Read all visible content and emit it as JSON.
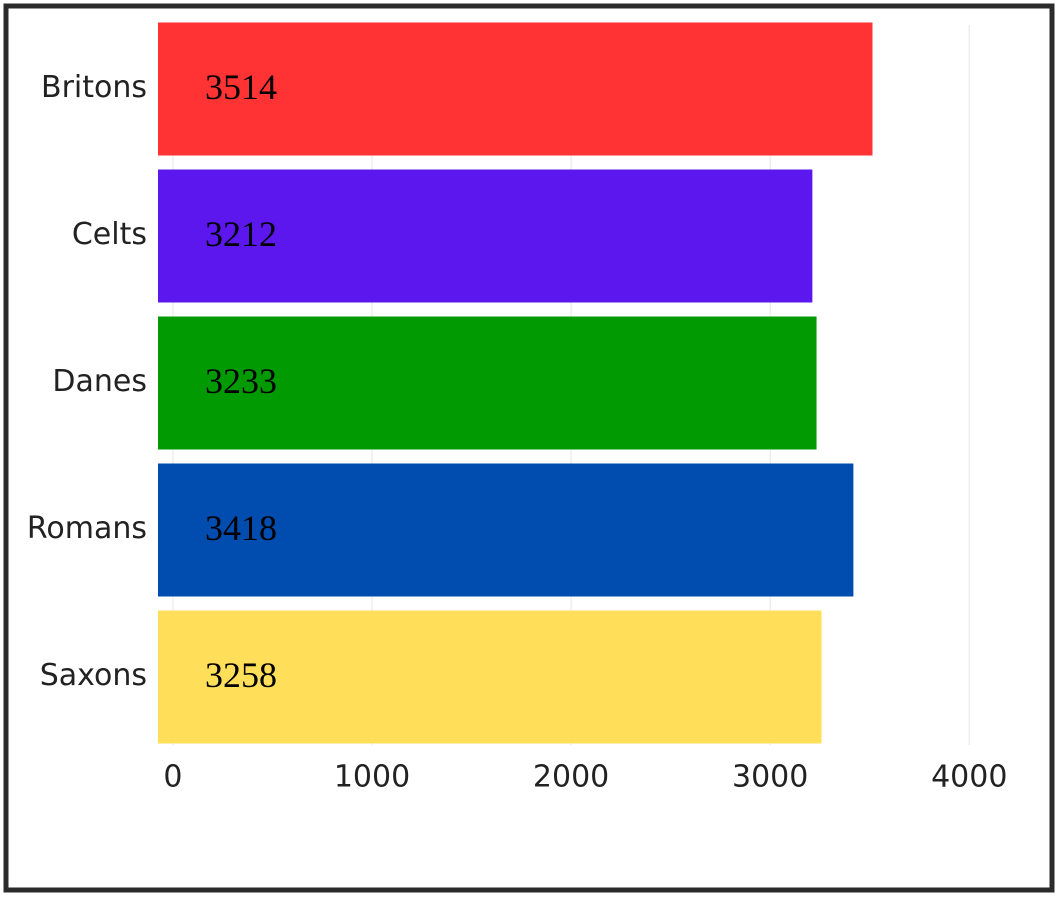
{
  "chart_data": {
    "type": "bar",
    "orientation": "horizontal",
    "categories": [
      "Britons",
      "Celts",
      "Danes",
      "Romans",
      "Saxons"
    ],
    "values": [
      3514,
      3212,
      3233,
      3418,
      3258
    ],
    "colors": [
      "#ff3333",
      "#5b17ee",
      "#029a02",
      "#004daf",
      "#ffde59"
    ],
    "xlim": [
      -75,
      4270
    ],
    "xticks": [
      0,
      1000,
      2000,
      3000,
      4000
    ],
    "grid": true
  }
}
